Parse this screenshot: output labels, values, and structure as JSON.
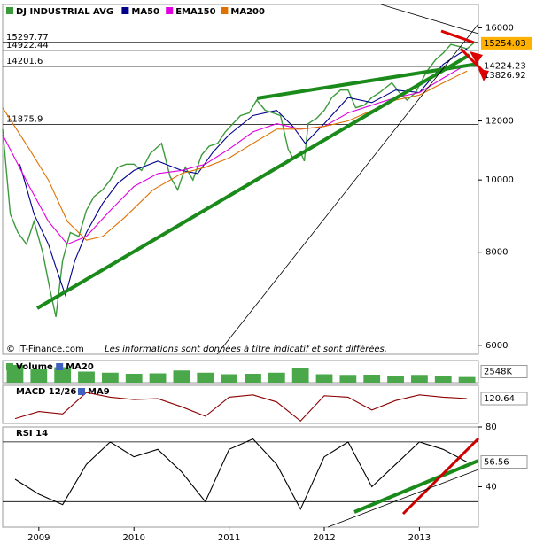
{
  "chart_data": [
    {
      "type": "line",
      "log_scale": true,
      "xlim": [
        2008.62,
        2013.62
      ],
      "ylim": [
        5835,
        17200
      ],
      "yticks": [
        6000,
        8000,
        10000,
        12000,
        16000
      ],
      "levels": [
        15297.77,
        14922.44,
        14201.6,
        11875.9
      ],
      "series": [
        {
          "name": "DJ INDUSTRIAL AVG",
          "color": "#3c9a3c",
          "x": [
            2008.62,
            2008.7,
            2008.78,
            2008.87,
            2008.95,
            2009.04,
            2009.12,
            2009.18,
            2009.25,
            2009.33,
            2009.42,
            2009.5,
            2009.58,
            2009.67,
            2009.75,
            2009.83,
            2009.92,
            2010.0,
            2010.08,
            2010.17,
            2010.29,
            2010.38,
            2010.46,
            2010.54,
            2010.62,
            2010.71,
            2010.79,
            2010.88,
            2010.96,
            2011.04,
            2011.12,
            2011.21,
            2011.29,
            2011.38,
            2011.46,
            2011.54,
            2011.62,
            2011.67,
            2011.75,
            2011.79,
            2011.83,
            2011.92,
            2012.0,
            2012.08,
            2012.17,
            2012.25,
            2012.33,
            2012.42,
            2012.5,
            2012.58,
            2012.71,
            2012.79,
            2012.87,
            2012.96,
            2013.0,
            2013.08,
            2013.17,
            2013.25,
            2013.33,
            2013.42,
            2013.5,
            2013.58
          ],
          "values": [
            11700,
            9000,
            8500,
            8200,
            8800,
            8000,
            7100,
            6550,
            7800,
            8500,
            8400,
            9100,
            9500,
            9700,
            10000,
            10400,
            10500,
            10500,
            10300,
            10850,
            11200,
            10100,
            9700,
            10400,
            10000,
            10800,
            11100,
            11200,
            11600,
            11900,
            12200,
            12300,
            12800,
            12400,
            12300,
            12200,
            11000,
            10700,
            10900,
            10600,
            11900,
            12100,
            12400,
            12900,
            13200,
            13200,
            12500,
            12600,
            12900,
            13100,
            13500,
            13100,
            12800,
            13100,
            13400,
            14000,
            14500,
            14800,
            15200,
            15100,
            15000,
            15300
          ]
        },
        {
          "name": "MA50",
          "color": "#00008b",
          "x": [
            2008.8,
            2008.95,
            2009.1,
            2009.2,
            2009.28,
            2009.38,
            2009.5,
            2009.67,
            2009.83,
            2010.0,
            2010.25,
            2010.5,
            2010.67,
            2010.83,
            2011.0,
            2011.25,
            2011.5,
            2011.67,
            2011.8,
            2012.0,
            2012.25,
            2012.5,
            2012.75,
            2013.0,
            2013.25,
            2013.5
          ],
          "values": [
            10500,
            9000,
            8200,
            7500,
            7000,
            7800,
            8500,
            9300,
            9900,
            10300,
            10600,
            10300,
            10200,
            10900,
            11500,
            12200,
            12400,
            11800,
            11200,
            11900,
            12900,
            12700,
            13200,
            13100,
            14300,
            15000
          ]
        },
        {
          "name": "EMA150",
          "color": "#e000e0",
          "x": [
            2008.62,
            2008.9,
            2009.1,
            2009.3,
            2009.5,
            2009.75,
            2010.0,
            2010.25,
            2010.5,
            2010.75,
            2011.0,
            2011.25,
            2011.5,
            2011.75,
            2012.0,
            2012.25,
            2012.5,
            2012.75,
            2013.0,
            2013.25,
            2013.5
          ],
          "values": [
            11500,
            9800,
            8800,
            8200,
            8400,
            9100,
            9800,
            10200,
            10300,
            10500,
            11000,
            11600,
            11900,
            11700,
            11800,
            12300,
            12600,
            12900,
            13100,
            13700,
            14300
          ]
        },
        {
          "name": "MA200",
          "color": "#e07000",
          "x": [
            2008.62,
            2008.9,
            2009.1,
            2009.3,
            2009.5,
            2009.67,
            2009.9,
            2010.2,
            2010.5,
            2010.75,
            2011.0,
            2011.25,
            2011.5,
            2011.75,
            2012.0,
            2012.25,
            2012.5,
            2012.75,
            2013.0,
            2013.25,
            2013.5
          ],
          "values": [
            12500,
            11000,
            10000,
            8800,
            8300,
            8400,
            8900,
            9700,
            10200,
            10400,
            10700,
            11200,
            11700,
            11700,
            11800,
            12000,
            12400,
            12800,
            13000,
            13500,
            14000
          ]
        }
      ],
      "value_tags": [
        {
          "value": 15254.03,
          "color": "#ffb000",
          "boxed": true
        },
        {
          "value": 14224.23,
          "color": "#e000e0",
          "boxed": false
        },
        {
          "value": 13826.92,
          "color": "#cc0000",
          "boxed": false
        }
      ],
      "source": "© IT-Finance.com",
      "note": "Les informations sont données à titre indicatif et sont différées."
    },
    {
      "type": "bar",
      "name": "Volume",
      "ma_name": "MA20",
      "color": "#4aa84a",
      "xlim": [
        2008.62,
        2013.62
      ],
      "ylim": [
        0,
        10000
      ],
      "x": [
        2008.75,
        2009.0,
        2009.25,
        2009.5,
        2009.75,
        2010.0,
        2010.25,
        2010.5,
        2010.75,
        2011.0,
        2011.25,
        2011.5,
        2011.75,
        2012.0,
        2012.25,
        2012.5,
        2012.75,
        2013.0,
        2013.25,
        2013.5
      ],
      "values": [
        8000,
        6000,
        7000,
        5000,
        4500,
        4000,
        4200,
        5500,
        4500,
        3800,
        4000,
        4500,
        6500,
        3800,
        3500,
        3600,
        3200,
        3500,
        3000,
        2548
      ],
      "tag": {
        "value": 2548,
        "label": "2548K"
      }
    },
    {
      "type": "line",
      "name": "MACD 12/26",
      "ma_name": "MA9",
      "xlim": [
        2008.62,
        2013.62
      ],
      "ylim": [
        -400,
        400
      ],
      "series": [
        {
          "color": "#8b0000",
          "x": [
            2008.75,
            2009.0,
            2009.25,
            2009.5,
            2009.75,
            2010.0,
            2010.25,
            2010.5,
            2010.75,
            2011.0,
            2011.25,
            2011.5,
            2011.75,
            2012.0,
            2012.25,
            2012.5,
            2012.75,
            2013.0,
            2013.25,
            2013.5
          ],
          "values": [
            -300,
            -150,
            -200,
            250,
            150,
            100,
            120,
            -50,
            -250,
            150,
            200,
            50,
            -350,
            180,
            150,
            -120,
            80,
            200,
            150,
            120.64
          ]
        }
      ],
      "tag": 120.64
    },
    {
      "type": "line",
      "name": "RSI 14",
      "xlim": [
        2008.62,
        2013.62
      ],
      "ylim": [
        13,
        80
      ],
      "yticks": [
        40,
        80
      ],
      "levels": [
        70,
        30
      ],
      "xticks": [
        2009,
        2010,
        2011,
        2012,
        2013
      ],
      "series": [
        {
          "color": "#000000",
          "x": [
            2008.75,
            2009.0,
            2009.25,
            2009.5,
            2009.75,
            2010.0,
            2010.25,
            2010.5,
            2010.75,
            2011.0,
            2011.25,
            2011.5,
            2011.75,
            2012.0,
            2012.25,
            2012.5,
            2012.75,
            2013.0,
            2013.25,
            2013.5
          ],
          "values": [
            45,
            35,
            28,
            55,
            70,
            60,
            65,
            50,
            30,
            65,
            72,
            55,
            25,
            60,
            70,
            40,
            55,
            70,
            65,
            56.56
          ]
        }
      ],
      "tag": 56.56
    }
  ]
}
